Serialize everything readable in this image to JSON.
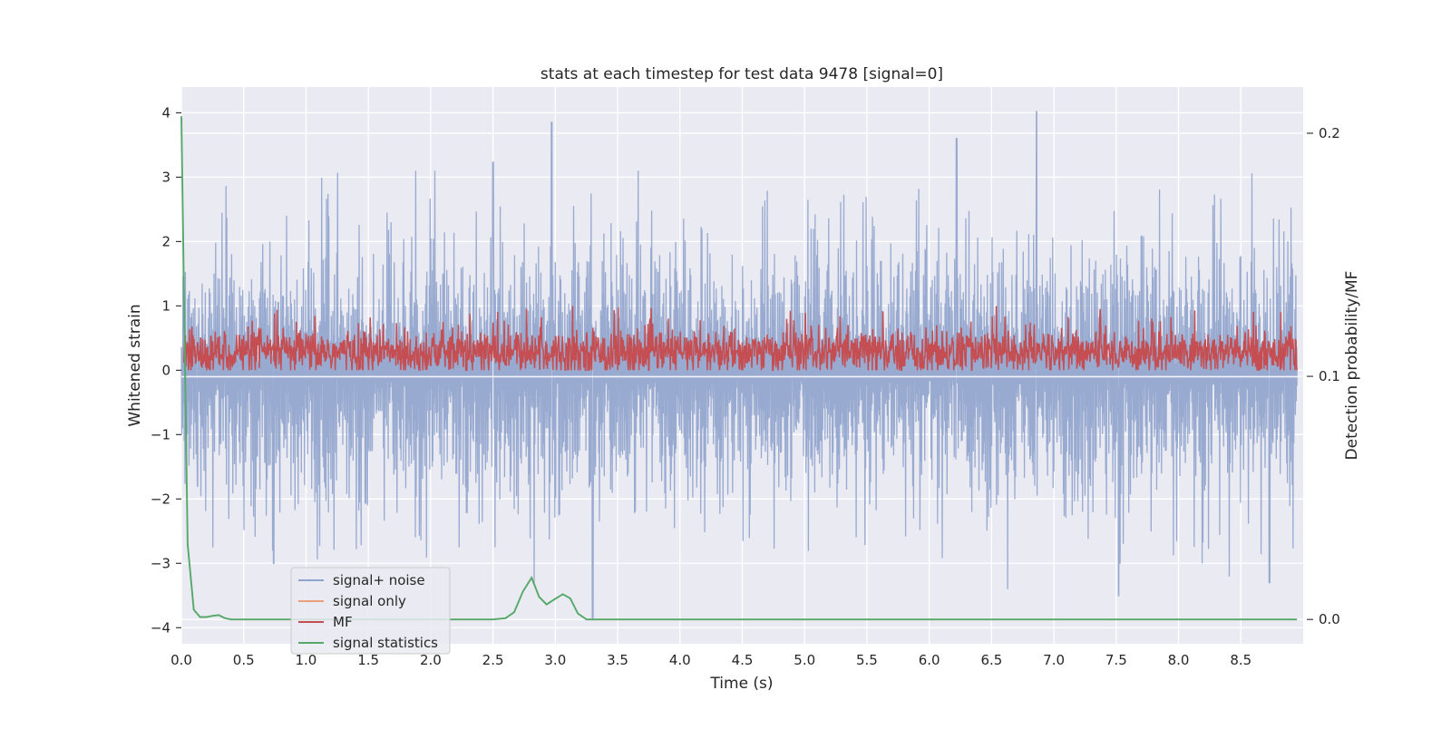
{
  "chart_data": {
    "type": "line",
    "title": "stats at each timestep for test data 9478 [signal=0]",
    "xlabel": "Time (s)",
    "ylabel": "Whitened strain",
    "ylabel_right": "Detection probability/MF",
    "xlim": [
      0.0,
      9.0
    ],
    "ylim": [
      -4.25,
      4.4
    ],
    "ylim_right": [
      -0.01,
      0.219
    ],
    "x_ticks": [
      0.0,
      0.5,
      1.0,
      1.5,
      2.0,
      2.5,
      3.0,
      3.5,
      4.0,
      4.5,
      5.0,
      5.5,
      6.0,
      6.5,
      7.0,
      7.5,
      8.0,
      8.5
    ],
    "x_tick_labels": [
      "0.0",
      "0.5",
      "1.0",
      "1.5",
      "2.0",
      "2.5",
      "3.0",
      "3.5",
      "4.0",
      "4.5",
      "5.0",
      "5.5",
      "6.0",
      "6.5",
      "7.0",
      "7.5",
      "8.0",
      "8.5"
    ],
    "y_ticks": [
      -4,
      -3,
      -2,
      -1,
      0,
      1,
      2,
      3,
      4
    ],
    "y_tick_labels": [
      "−4",
      "−3",
      "−2",
      "−1",
      "0",
      "1",
      "2",
      "3",
      "4"
    ],
    "y_ticks_right": [
      0.0,
      0.1,
      0.2
    ],
    "y_tick_labels_right": [
      "0.0",
      "0.1",
      "0.2"
    ],
    "grid": true,
    "legend_position": "lower-left",
    "series": [
      {
        "name": "signal+ noise",
        "axis": "left",
        "color": "#8fa3cc",
        "style": "noise",
        "amplitude_range": [
          -3.6,
          4.0
        ],
        "peaks": [
          [
            2.97,
            3.85
          ],
          [
            6.86,
            4.02
          ],
          [
            6.22,
            3.6
          ],
          [
            2.5,
            3.23
          ],
          [
            0.13,
            -1.8
          ],
          [
            0.74,
            -3.0
          ],
          [
            3.3,
            -3.85
          ],
          [
            7.52,
            -3.5
          ],
          [
            8.73,
            -3.3
          ]
        ]
      },
      {
        "name": "signal only",
        "axis": "left",
        "color": "#e8a07c",
        "x": [
          0.0,
          9.0
        ],
        "y": [
          -0.1,
          -0.1
        ]
      },
      {
        "name": "MF",
        "axis": "left",
        "color": "#c44e52",
        "style": "noise",
        "amplitude_range": [
          0.0,
          1.0
        ]
      },
      {
        "name": "signal statistics",
        "axis": "right",
        "color": "#55a868",
        "x": [
          0.0,
          0.05,
          0.1,
          0.15,
          0.2,
          0.25,
          0.3,
          0.35,
          0.4,
          0.45,
          0.5,
          0.6,
          1.0,
          2.0,
          2.5,
          2.6,
          2.67,
          2.74,
          2.81,
          2.87,
          2.93,
          3.0,
          3.06,
          3.12,
          3.18,
          3.25,
          3.3,
          3.5,
          5.0,
          7.0,
          9.0
        ],
        "y": [
          0.207,
          0.031,
          0.004,
          0.001,
          0.001,
          0.0015,
          0.0018,
          0.0005,
          0.0,
          0.0,
          0.0,
          0.0,
          0.0,
          0.0,
          0.0,
          0.0005,
          0.003,
          0.0115,
          0.0172,
          0.0093,
          0.0062,
          0.0085,
          0.0104,
          0.0087,
          0.0025,
          0.0,
          0.0,
          0.0,
          0.0,
          0.0,
          0.0
        ]
      }
    ]
  }
}
